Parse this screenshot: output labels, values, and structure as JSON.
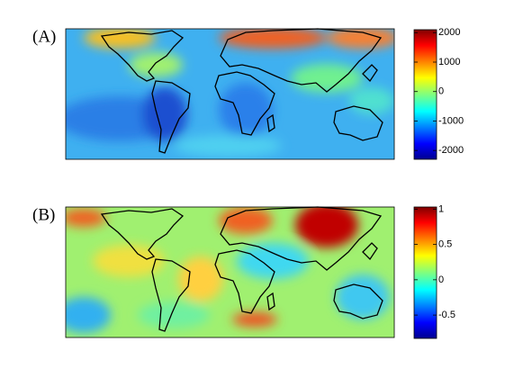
{
  "panels": [
    {
      "label": "(A)",
      "colorbar": {
        "lim": [
          -2300,
          2100
        ],
        "ticks": [
          2000,
          1000,
          0,
          -1000,
          -2000
        ]
      }
    },
    {
      "label": "(B)",
      "colorbar": {
        "lim": [
          -0.83,
          1.03
        ],
        "ticks": [
          1,
          0.5,
          0,
          -0.5
        ]
      }
    }
  ]
}
